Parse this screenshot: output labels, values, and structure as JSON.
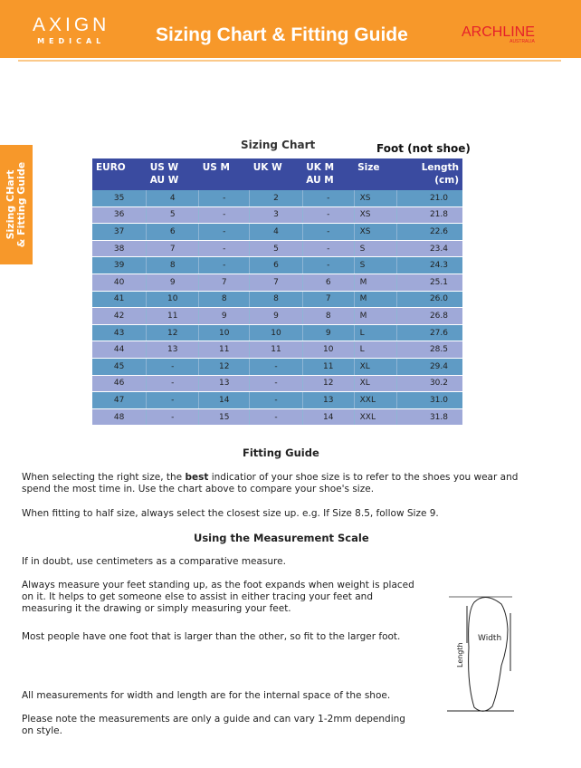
{
  "header": {
    "logo_main": "AXIGN",
    "logo_sub": "MEDICAL",
    "title": "Sizing Chart & Fitting Guide",
    "brand": "ARCHLINE",
    "brand_sub": "AUSTRALIA",
    "color": "#f7982a"
  },
  "side_tab": {
    "line1": "Sizing CHart",
    "line2": "& Fitting Guide"
  },
  "chart_title": "Sizing Chart",
  "foot_note": "Foot (not shoe)",
  "table": {
    "headers": [
      "EURO",
      "US W\nAU W",
      "US M",
      "UK W",
      "UK M\nAU M",
      "Size",
      "Length\n(cm)"
    ],
    "rows": [
      [
        "35",
        "4",
        "-",
        "2",
        "-",
        "XS",
        "21.0"
      ],
      [
        "36",
        "5",
        "-",
        "3",
        "-",
        "XS",
        "21.8"
      ],
      [
        "37",
        "6",
        "-",
        "4",
        "-",
        "XS",
        "22.6"
      ],
      [
        "38",
        "7",
        "-",
        "5",
        "-",
        "S",
        "23.4"
      ],
      [
        "39",
        "8",
        "-",
        "6",
        "-",
        "S",
        "24.3"
      ],
      [
        "40",
        "9",
        "7",
        "7",
        "6",
        "M",
        "25.1"
      ],
      [
        "41",
        "10",
        "8",
        "8",
        "7",
        "M",
        "26.0"
      ],
      [
        "42",
        "11",
        "9",
        "9",
        "8",
        "M",
        "26.8"
      ],
      [
        "43",
        "12",
        "10",
        "10",
        "9",
        "L",
        "27.6"
      ],
      [
        "44",
        "13",
        "11",
        "11",
        "10",
        "L",
        "28.5"
      ],
      [
        "45",
        "-",
        "12",
        "-",
        "11",
        "XL",
        "29.4"
      ],
      [
        "46",
        "-",
        "13",
        "-",
        "12",
        "XL",
        "30.2"
      ],
      [
        "47",
        "-",
        "14",
        "-",
        "13",
        "XXL",
        "31.0"
      ],
      [
        "48",
        "-",
        "15",
        "-",
        "14",
        "XXL",
        "31.8"
      ]
    ]
  },
  "fitting": {
    "title": "Fitting Guide",
    "p1a": "When selecting the right size, the ",
    "p1b": "best",
    "p1c": " indicatior of your shoe size is to refer to the shoes you wear and spend the most time in. Use the chart above to compare your shoe's size.",
    "p2": "When fitting to half size, always select the closest size up. e.g. If Size 8.5, follow Size 9."
  },
  "measure": {
    "title": "Using the Measurement Scale",
    "p1": "If in doubt, use centimeters as a comparative measure.",
    "p2": "Always measure your feet standing up, as the foot expands when weight is placed on it. It helps to get someone else to assist in either tracing your feet and measuring it the drawing or simply measuring your feet.",
    "p3": "Most people have one foot that is larger than the other, so fit to the larger foot.",
    "p4": "All measurements for width and length are for the internal space of the shoe.",
    "p5": "Please note the measurements are only a guide and can vary 1-2mm depending on style."
  },
  "diagram": {
    "width_label": "Width",
    "length_label": "Length"
  }
}
